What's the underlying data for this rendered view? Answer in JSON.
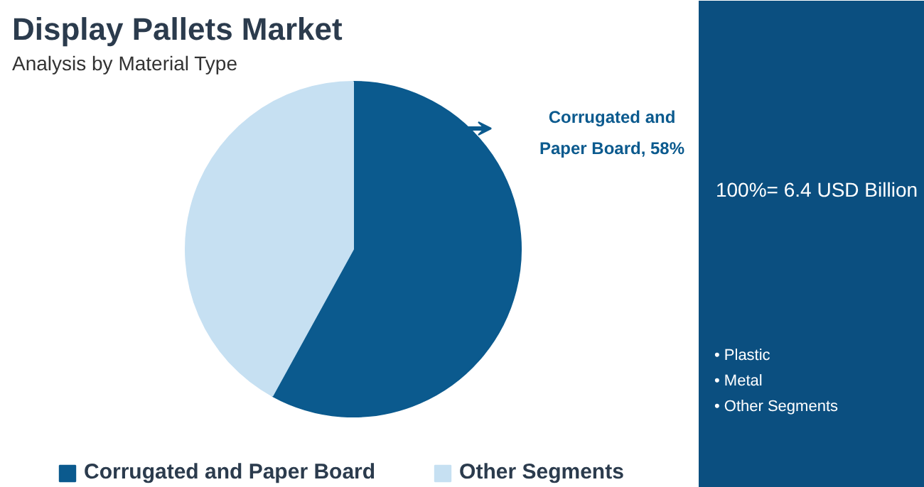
{
  "chart_data": {
    "type": "pie",
    "title": "Display Pallets Market",
    "subtitle": "Analysis by Material Type",
    "categories": [
      "Corrugated and Paper Board",
      "Other Segments"
    ],
    "values": [
      58,
      42
    ],
    "colors": [
      "#0b5a8e",
      "#c6e0f2"
    ],
    "value_labels": [
      "Corrugated and Paper Board, 58%",
      null
    ],
    "legend": "bottom",
    "annotations": [
      "100%= 6.4 USD Billion",
      "• Plastic",
      "• Metal",
      "• Other Segments"
    ]
  }
}
